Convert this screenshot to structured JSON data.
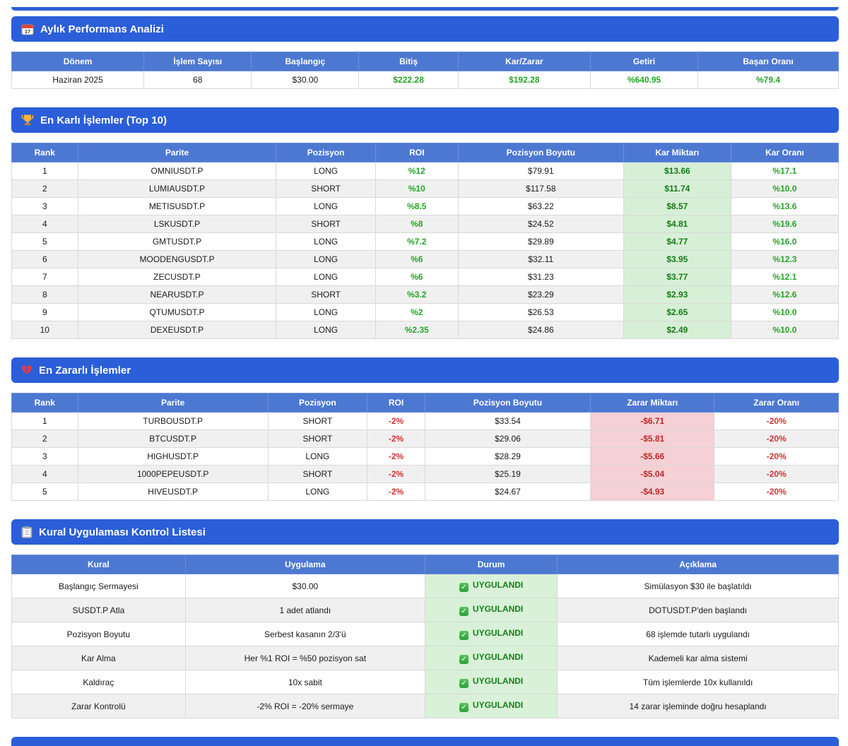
{
  "summary": {
    "title": "Aylık Performans Analizi",
    "columns": [
      "Dönem",
      "İşlem Sayısı",
      "Başlangıç",
      "Bitiş",
      "Kar/Zarar",
      "Getiri",
      "Başarı Oranı"
    ],
    "row": {
      "donem": "Haziran 2025",
      "islem_sayisi": "68",
      "baslangic": "$30.00",
      "bitis": "$222.28",
      "kar_zarar": "$192.28",
      "getiri": "%640.95",
      "basari_orani": "%79.4"
    }
  },
  "top_trades": {
    "title": "En Karlı İşlemler (Top 10)",
    "columns": [
      "Rank",
      "Parite",
      "Pozisyon",
      "ROI",
      "Pozisyon Boyutu",
      "Kar Miktarı",
      "Kar Oranı"
    ],
    "rows": [
      [
        "1",
        "OMNIUSDT.P",
        "LONG",
        "%12",
        "$79.91",
        "$13.66",
        "%17.1"
      ],
      [
        "2",
        "LUMIAUSDT.P",
        "SHORT",
        "%10",
        "$117.58",
        "$11.74",
        "%10.0"
      ],
      [
        "3",
        "METISUSDT.P",
        "LONG",
        "%8.5",
        "$63.22",
        "$8.57",
        "%13.6"
      ],
      [
        "4",
        "LSKUSDT.P",
        "SHORT",
        "%8",
        "$24.52",
        "$4.81",
        "%19.6"
      ],
      [
        "5",
        "GMTUSDT.P",
        "LONG",
        "%7.2",
        "$29.89",
        "$4.77",
        "%16.0"
      ],
      [
        "6",
        "MOODENGUSDT.P",
        "LONG",
        "%6",
        "$32.11",
        "$3.95",
        "%12.3"
      ],
      [
        "7",
        "ZECUSDT.P",
        "LONG",
        "%6",
        "$31.23",
        "$3.77",
        "%12.1"
      ],
      [
        "8",
        "NEARUSDT.P",
        "SHORT",
        "%3.2",
        "$23.29",
        "$2.93",
        "%12.6"
      ],
      [
        "9",
        "QTUMUSDT.P",
        "LONG",
        "%2",
        "$26.53",
        "$2.65",
        "%10.0"
      ],
      [
        "10",
        "DEXEUSDT.P",
        "LONG",
        "%2.35",
        "$24.86",
        "$2.49",
        "%10.0"
      ]
    ]
  },
  "loss_trades": {
    "title": "En Zararlı İşlemler",
    "columns": [
      "Rank",
      "Parite",
      "Pozisyon",
      "ROI",
      "Pozisyon Boyutu",
      "Zarar Miktarı",
      "Zarar Oranı"
    ],
    "rows": [
      [
        "1",
        "TURBOUSDT.P",
        "SHORT",
        "-2%",
        "$33.54",
        "-$6.71",
        "-20%"
      ],
      [
        "2",
        "BTCUSDT.P",
        "SHORT",
        "-2%",
        "$29.06",
        "-$5.81",
        "-20%"
      ],
      [
        "3",
        "HIGHUSDT.P",
        "LONG",
        "-2%",
        "$28.29",
        "-$5.66",
        "-20%"
      ],
      [
        "4",
        "1000PEPEUSDT.P",
        "SHORT",
        "-2%",
        "$25.19",
        "-$5.04",
        "-20%"
      ],
      [
        "5",
        "HIVEUSDT.P",
        "LONG",
        "-2%",
        "$24.67",
        "-$4.93",
        "-20%"
      ]
    ]
  },
  "checklist": {
    "title": "Kural Uygulaması Kontrol Listesi",
    "columns": [
      "Kural",
      "Uygulama",
      "Durum",
      "Açıklama"
    ],
    "status_label": "UYGULANDI",
    "rows": [
      [
        "Başlangıç Sermayesi",
        "$30.00",
        "UYGULANDI",
        "Simülasyon $30 ile başlatıldı"
      ],
      [
        "SUSDT.P Atla",
        "1 adet atlandı",
        "UYGULANDI",
        "DOTUSDT.P'den başlandı"
      ],
      [
        "Pozisyon Boyutu",
        "Serbest kasanın 2/3'ü",
        "UYGULANDI",
        "68 işlemde tutarlı uygulandı"
      ],
      [
        "Kar Alma",
        "Her %1 ROI = %50 pozisyon sat",
        "UYGULANDI",
        "Kademeli kar alma sistemi"
      ],
      [
        "Kaldıraç",
        "10x sabit",
        "UYGULANDI",
        "Tüm işlemlerde 10x kullanıldı"
      ],
      [
        "Zarar Kontrolü",
        "-2% ROI = -20% sermaye",
        "UYGULANDI",
        "14 zarar işleminde doğru hesaplandı"
      ]
    ]
  },
  "colors": {
    "banner_blue": "#2b5ed8",
    "header_blue": "#4d78d2",
    "profit_green_text": "#27a427",
    "profit_green_bg": "#d7efd7",
    "loss_red_text": "#d03434",
    "loss_red_bg": "#f5d0d4",
    "status_green_bg": "#d8f1d8"
  }
}
